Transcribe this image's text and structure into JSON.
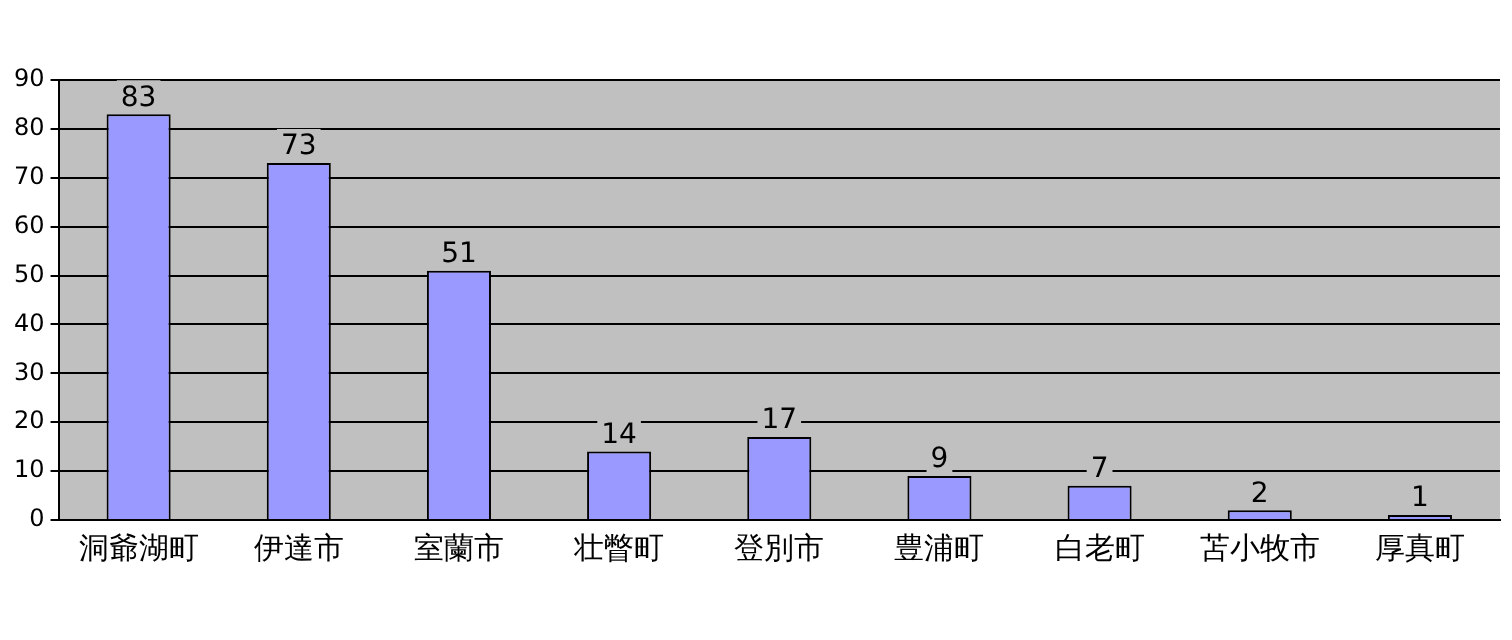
{
  "chart_data": {
    "type": "bar",
    "categories": [
      "洞爺湖町",
      "伊達市",
      "室蘭市",
      "壮瞥町",
      "登別市",
      "豊浦町",
      "白老町",
      "苫小牧市",
      "厚真町"
    ],
    "values": [
      83,
      73,
      51,
      14,
      17,
      9,
      7,
      2,
      1
    ],
    "color": "#9999ff",
    "ylim": [
      0,
      90
    ],
    "yticks": [
      0,
      10,
      20,
      30,
      40,
      50,
      60,
      70,
      80,
      90
    ],
    "grid": "y",
    "legend": false,
    "data_labels": true
  }
}
